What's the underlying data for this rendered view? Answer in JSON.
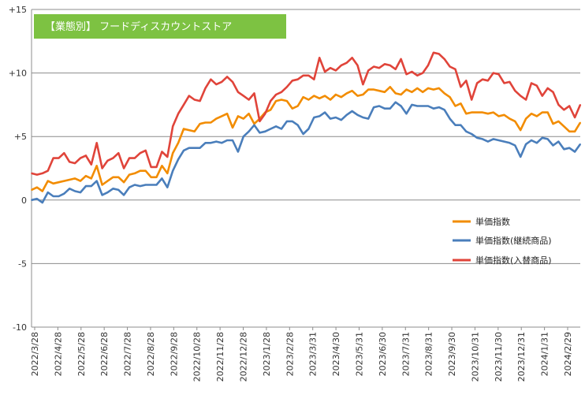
{
  "chart_data": {
    "type": "line",
    "title": "【業態別】 フードディスカウントストア",
    "title_bg": "#7dc242",
    "ylim": [
      -10,
      15
    ],
    "yticks": [
      -10,
      -5,
      0,
      5,
      10,
      15
    ],
    "ytick_labels": [
      "-10",
      "-5",
      "0",
      "+5",
      "+10",
      "+15"
    ],
    "grid": "horizontal",
    "legend_position": "right-middle",
    "x_tick_labels": [
      "2022/3/28",
      "2022/4/28",
      "2022/5/28",
      "2022/6/28",
      "2022/7/28",
      "2022/8/28",
      "2022/9/28",
      "2022/10/28",
      "2022/11/28",
      "2022/12/28",
      "2023/1/28",
      "2023/2/28",
      "2023/3/31",
      "2023/4/30",
      "2023/5/31",
      "2023/6/30",
      "2023/7/31",
      "2023/8/31",
      "2023/9/30",
      "2023/10/31",
      "2023/11/30",
      "2023/12/31",
      "2024/1/31",
      "2024/2/29"
    ],
    "series": [
      {
        "name": "単価指数",
        "color": "#f28c00",
        "values": [
          0.8,
          1.0,
          0.7,
          1.5,
          1.3,
          1.4,
          1.5,
          1.6,
          1.7,
          1.5,
          1.9,
          1.7,
          2.7,
          1.2,
          1.5,
          1.8,
          1.8,
          1.4,
          2.0,
          2.1,
          2.3,
          2.3,
          1.8,
          1.8,
          2.7,
          2.1,
          3.7,
          4.5,
          5.6,
          5.5,
          5.4,
          6.0,
          6.1,
          6.1,
          6.4,
          6.6,
          6.8,
          5.7,
          6.6,
          6.4,
          6.8,
          6.0,
          6.4,
          6.9,
          7.1,
          7.8,
          7.9,
          7.8,
          7.2,
          7.4,
          8.1,
          7.9,
          8.2,
          8.0,
          8.2,
          7.9,
          8.3,
          8.1,
          8.4,
          8.6,
          8.2,
          8.3,
          8.7,
          8.7,
          8.6,
          8.5,
          8.9,
          8.4,
          8.3,
          8.7,
          8.5,
          8.8,
          8.5,
          8.8,
          8.7,
          8.8,
          8.4,
          8.1,
          7.4,
          7.6,
          6.8,
          6.9,
          6.9,
          6.9,
          6.8,
          6.9,
          6.6,
          6.7,
          6.4,
          6.2,
          5.5,
          6.4,
          6.8,
          6.6,
          6.9,
          6.9,
          6.0,
          6.2,
          5.8,
          5.4,
          5.4,
          6.1
        ]
      },
      {
        "name": "単価指数(継続商品)",
        "color": "#4a7ebb",
        "values": [
          0.0,
          0.1,
          -0.2,
          0.6,
          0.3,
          0.3,
          0.5,
          0.9,
          0.7,
          0.6,
          1.1,
          1.1,
          1.5,
          0.4,
          0.6,
          0.9,
          0.8,
          0.4,
          1.0,
          1.2,
          1.1,
          1.2,
          1.2,
          1.2,
          1.7,
          1.0,
          2.3,
          3.2,
          3.9,
          4.1,
          4.1,
          4.1,
          4.5,
          4.5,
          4.6,
          4.5,
          4.7,
          4.7,
          3.8,
          5.0,
          5.4,
          5.9,
          5.3,
          5.4,
          5.6,
          5.8,
          5.6,
          6.2,
          6.2,
          5.9,
          5.2,
          5.6,
          6.5,
          6.6,
          6.9,
          6.4,
          6.5,
          6.3,
          6.7,
          7.0,
          6.7,
          6.5,
          6.4,
          7.3,
          7.4,
          7.2,
          7.2,
          7.7,
          7.4,
          6.8,
          7.5,
          7.4,
          7.4,
          7.4,
          7.2,
          7.3,
          7.1,
          6.4,
          5.9,
          5.9,
          5.4,
          5.2,
          4.9,
          4.8,
          4.6,
          4.8,
          4.7,
          4.6,
          4.5,
          4.3,
          3.4,
          4.4,
          4.7,
          4.5,
          4.9,
          4.8,
          4.3,
          4.6,
          4.0,
          4.1,
          3.8,
          4.4
        ]
      },
      {
        "name": "単価指数(入替商品)",
        "color": "#e0443a",
        "values": [
          2.1,
          2.0,
          2.1,
          2.3,
          3.3,
          3.3,
          3.7,
          3.0,
          2.9,
          3.3,
          3.5,
          2.8,
          4.5,
          2.5,
          3.1,
          3.3,
          3.7,
          2.5,
          3.3,
          3.3,
          3.7,
          3.9,
          2.6,
          2.6,
          3.8,
          3.4,
          5.8,
          6.8,
          7.5,
          8.2,
          7.9,
          7.8,
          8.8,
          9.5,
          9.1,
          9.3,
          9.7,
          9.3,
          8.5,
          8.2,
          7.9,
          8.4,
          6.2,
          6.8,
          7.8,
          8.3,
          8.5,
          8.9,
          9.4,
          9.5,
          9.8,
          9.8,
          9.5,
          11.2,
          10.1,
          10.4,
          10.2,
          10.6,
          10.8,
          11.2,
          10.6,
          9.1,
          10.2,
          10.5,
          10.4,
          10.7,
          10.6,
          10.3,
          11.1,
          9.9,
          10.1,
          9.8,
          10.0,
          10.6,
          11.6,
          11.5,
          11.1,
          10.5,
          10.3,
          8.9,
          9.4,
          7.9,
          9.2,
          9.5,
          9.4,
          10.0,
          9.9,
          9.2,
          9.3,
          8.6,
          8.2,
          7.9,
          9.2,
          9.0,
          8.2,
          8.8,
          8.5,
          7.5,
          7.1,
          7.4,
          6.5,
          7.5
        ]
      }
    ]
  }
}
